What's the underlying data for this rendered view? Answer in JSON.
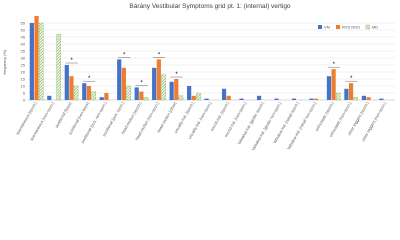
{
  "chart_data": {
    "type": "bar",
    "title": "Bárány Vestibular Symptoms grid pt. 1: (internal) vertigo",
    "y_label": "frequency (%)",
    "categories": [
      "spontaneous [spont.]",
      "spontaneous [non-spon.]",
      "positional [bppv]",
      "positional [non-bppv]",
      "positional [pos. non-spon.]",
      "positional [pos. spon.]",
      "head-motion [spont.]",
      "head-motion [non-spon.]",
      "head-motion [other]",
      "visually-ind. [spont.]",
      "visually-ind. [non-spon.]",
      "sound-ind. [spont.]",
      "sound-ind. [non-spon.]",
      "Valsalva-ind. [glottic spont.]",
      "Valsalva-ind. [glottic non-spon.]",
      "Valsalva-ind. [nasal spont.]",
      "Valsalva-ind. [nasal non-spon.]",
      "orthostatic [spont.]",
      "orthostatic [non-spon.]",
      "other triggers [spont.]",
      "other triggers [non-spon.]"
    ],
    "series": [
      {
        "name": "VM",
        "color": "#4472c4",
        "values": [
          55,
          3,
          25,
          12,
          2,
          29,
          9,
          23,
          13,
          10,
          1,
          8,
          1,
          3,
          1,
          1,
          1,
          17,
          8,
          3,
          1
        ]
      },
      {
        "name": "RVS NOS",
        "color": "#ed7d31",
        "values": [
          60,
          0,
          17,
          10,
          5,
          23,
          6,
          29,
          15,
          3,
          0,
          3,
          0,
          0,
          0,
          0,
          1,
          22,
          12,
          2,
          0
        ]
      },
      {
        "name": "MD",
        "color": "#70ad47",
        "values": [
          55,
          47,
          10,
          6,
          0,
          10,
          2,
          18,
          3,
          5,
          0,
          0,
          0,
          0,
          0,
          0,
          0,
          5,
          2,
          0,
          0
        ]
      }
    ],
    "annotations": [
      "*",
      "*",
      "*",
      "*",
      "*",
      "*",
      "*",
      "*"
    ],
    "ylim": [
      0,
      60
    ],
    "yticks": [
      0,
      5,
      10,
      15,
      20,
      25,
      30,
      35,
      40,
      45,
      50,
      55
    ],
    "grid": true,
    "legend": "top-right"
  }
}
